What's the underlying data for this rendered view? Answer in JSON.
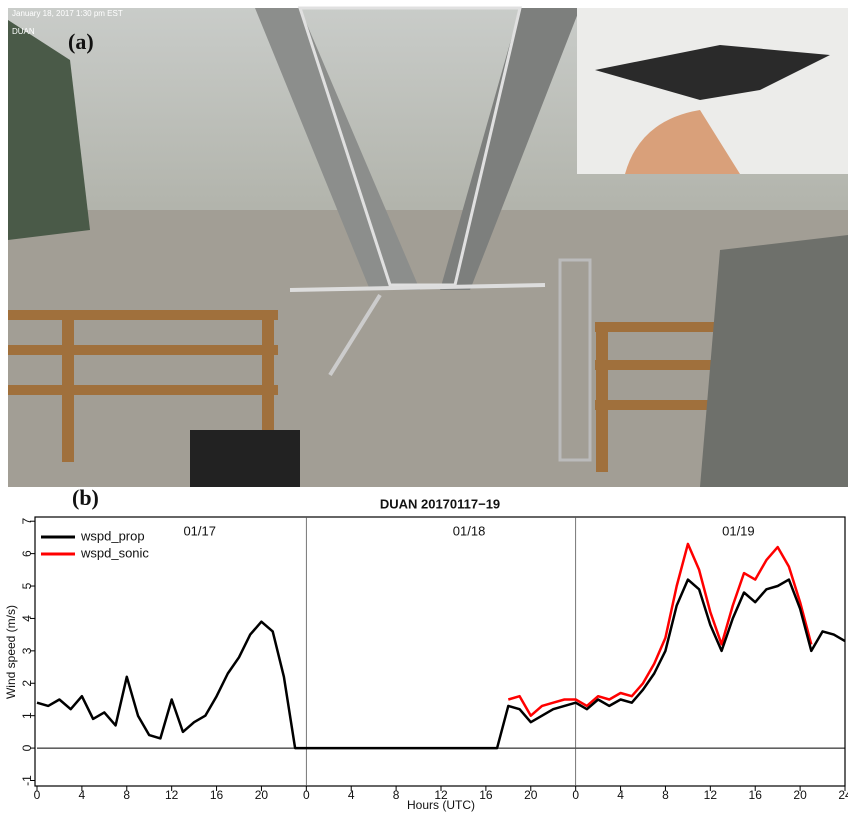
{
  "photo": {
    "timestamp": "January 18, 2017 1:30 pm EST",
    "station": "DUAN",
    "panel_label": "(a)"
  },
  "chart_data": {
    "type": "line",
    "panel_label": "(b)",
    "title": "DUAN 20170117−19",
    "x_label": "Hours (UTC)",
    "y_label": "Wind speed (m/s)",
    "day_labels": [
      "01/17",
      "01/18",
      "01/19"
    ],
    "day_lines": [
      24,
      48
    ],
    "x": [
      0,
      1,
      2,
      3,
      4,
      5,
      6,
      7,
      8,
      9,
      10,
      11,
      12,
      13,
      14,
      15,
      16,
      17,
      18,
      19,
      20,
      21,
      22,
      23,
      24,
      25,
      26,
      27,
      28,
      29,
      30,
      31,
      32,
      33,
      34,
      35,
      36,
      37,
      38,
      39,
      40,
      41,
      42,
      43,
      44,
      45,
      46,
      47,
      48,
      49,
      50,
      51,
      52,
      53,
      54,
      55,
      56,
      57,
      58,
      59,
      60,
      61,
      62,
      63,
      64,
      65,
      66,
      67,
      68,
      69,
      70,
      71,
      72
    ],
    "series": [
      {
        "name": "wspd_prop",
        "color": "#000000",
        "values": [
          1.4,
          1.3,
          1.5,
          1.2,
          1.6,
          0.9,
          1.1,
          0.7,
          2.2,
          1.0,
          0.4,
          0.3,
          1.5,
          0.5,
          0.8,
          1.0,
          1.6,
          2.3,
          2.8,
          3.5,
          3.9,
          3.6,
          2.2,
          0,
          0,
          0,
          0,
          0,
          0,
          0,
          0,
          0,
          0,
          0,
          0,
          0,
          0,
          0,
          0,
          0,
          0,
          0,
          1.3,
          1.2,
          0.8,
          1.0,
          1.2,
          1.3,
          1.4,
          1.2,
          1.5,
          1.3,
          1.5,
          1.4,
          1.8,
          2.3,
          3.0,
          4.4,
          5.2,
          4.9,
          3.8,
          3.0,
          4.0,
          4.8,
          4.5,
          4.9,
          5.0,
          5.2,
          4.3,
          3.0,
          3.6,
          3.5,
          3.3
        ]
      },
      {
        "name": "wspd_sonic",
        "color": "#ff0000",
        "values": [
          null,
          null,
          null,
          null,
          null,
          null,
          null,
          null,
          null,
          null,
          null,
          null,
          null,
          null,
          null,
          null,
          null,
          null,
          null,
          null,
          null,
          null,
          null,
          null,
          null,
          null,
          null,
          null,
          null,
          null,
          null,
          null,
          null,
          null,
          null,
          null,
          null,
          null,
          null,
          null,
          null,
          null,
          1.5,
          1.6,
          1.0,
          1.3,
          1.4,
          1.5,
          1.5,
          1.3,
          1.6,
          1.5,
          1.7,
          1.6,
          2.0,
          2.6,
          3.4,
          5.0,
          6.3,
          5.5,
          4.2,
          3.2,
          4.4,
          5.4,
          5.2,
          5.8,
          6.2,
          5.6,
          4.5,
          3.2,
          null,
          null,
          null
        ]
      }
    ],
    "xlim": [
      0,
      72
    ],
    "xticks": [
      0,
      4,
      8,
      12,
      16,
      20,
      {
        "value": 24,
        "label": "0"
      },
      {
        "value": 28,
        "label": "4"
      },
      {
        "value": 32,
        "label": "8"
      },
      {
        "value": 36,
        "label": "12"
      },
      {
        "value": 40,
        "label": "16"
      },
      {
        "value": 44,
        "label": "20"
      },
      {
        "value": 48,
        "label": "0"
      },
      {
        "value": 52,
        "label": "4"
      },
      {
        "value": 56,
        "label": "8"
      },
      {
        "value": 60,
        "label": "12"
      },
      {
        "value": 64,
        "label": "16"
      },
      {
        "value": 68,
        "label": "20"
      },
      {
        "value": 72,
        "label": "24"
      }
    ],
    "ylim": [
      -1.17,
      7.13
    ],
    "yticks": [
      -1,
      0,
      1,
      2,
      3,
      4,
      5,
      6,
      7
    ],
    "legend": "top-left"
  }
}
